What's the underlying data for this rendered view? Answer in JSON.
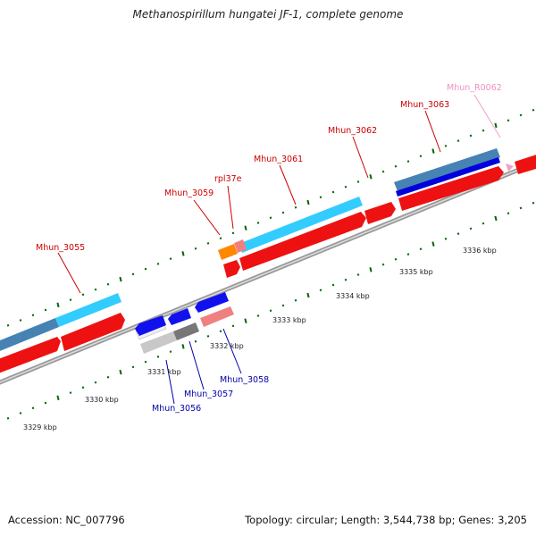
{
  "title": "Methanospirillum hungatei JF-1, complete genome",
  "footer": {
    "accession": "Accession: NC_007796",
    "summary": "Topology: circular; Length: 3,544,738 bp; Genes: 3,205"
  },
  "colors": {
    "forward_cds": "#ee1111",
    "reverse_cds": "#0000dd",
    "rna_gene": "#00ccff",
    "steelblue_gene": "#4682b4",
    "pseudo_gene": "#777777",
    "pink_gene": "#f08080",
    "orange_gene": "#ff8800",
    "forward_label": "#cc0000",
    "reverse_label": "#0000aa",
    "rna_label": "#f090c0",
    "tick": "#006600",
    "backbone": "#777777"
  },
  "scale": {
    "ticks": [
      {
        "label": "3329 kbp"
      },
      {
        "label": "3330 kbp"
      },
      {
        "label": "3331 kbp"
      },
      {
        "label": "3332 kbp"
      },
      {
        "label": "3333 kbp"
      },
      {
        "label": "3334 kbp"
      },
      {
        "label": "3335 kbp"
      },
      {
        "label": "3336 kbp"
      }
    ]
  },
  "gene_labels": [
    {
      "name": "Mhun_3055"
    },
    {
      "name": "Mhun_3059"
    },
    {
      "name": "rpl37e"
    },
    {
      "name": "Mhun_3061"
    },
    {
      "name": "Mhun_3062"
    },
    {
      "name": "Mhun_3063"
    },
    {
      "name": "Mhun_R0062"
    },
    {
      "name": "Mhun_3056"
    },
    {
      "name": "Mhun_3057"
    },
    {
      "name": "Mhun_3058"
    }
  ]
}
